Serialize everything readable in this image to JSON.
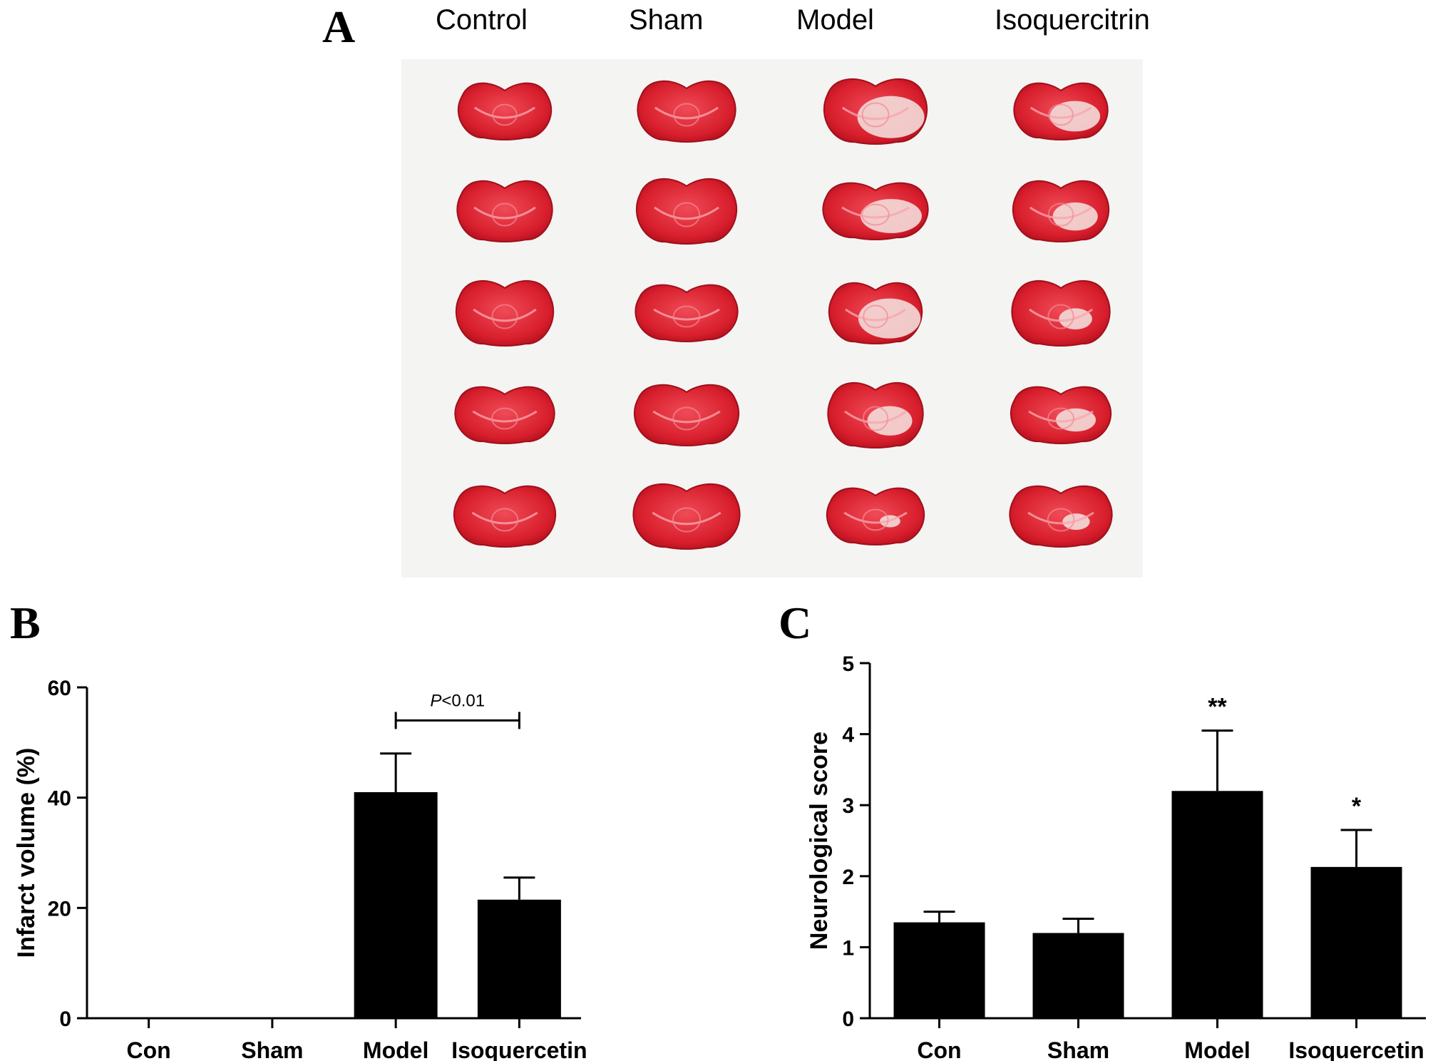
{
  "panel_a": {
    "letter": "A",
    "groups": [
      "Control",
      "Sham",
      "Model",
      "Isoquercitrin"
    ],
    "photo_background": "#f4f4f2",
    "tissue_red": "#d81e2c",
    "infarct_white": "#f3dcd9"
  },
  "panel_b": {
    "letter": "B"
  },
  "panel_c": {
    "letter": "C"
  },
  "chart_data": [
    {
      "type": "bar",
      "categories": [
        "Con",
        "Sham",
        "Model",
        "Isoquercetin"
      ],
      "values": [
        0,
        0,
        41,
        21.5
      ],
      "errors": [
        0,
        0,
        7,
        4
      ],
      "ylabel": "Infarct volume (%)",
      "xlabel": "",
      "ylim": [
        0,
        60
      ],
      "yticks": [
        0,
        20,
        40,
        60
      ],
      "bar_color": "#000000",
      "annotations": [
        {
          "type": "bracket",
          "from": "Model",
          "to": "Isoquercetin",
          "y": 54,
          "italic": "P",
          "text": "<0.01"
        }
      ]
    },
    {
      "type": "bar",
      "categories": [
        "Con",
        "Sham",
        "Model",
        "Isoquercetin"
      ],
      "values": [
        1.35,
        1.2,
        3.2,
        2.13
      ],
      "errors": [
        0.15,
        0.2,
        0.85,
        0.52
      ],
      "ylabel": "Neurological score",
      "xlabel": "",
      "ylim": [
        0,
        5
      ],
      "yticks": [
        0,
        1,
        2,
        3,
        4,
        5
      ],
      "bar_color": "#000000",
      "annotations": [
        {
          "type": "significance",
          "category": "Model",
          "text": "**"
        },
        {
          "type": "significance",
          "category": "Isoquercetin",
          "text": "*"
        }
      ]
    }
  ]
}
